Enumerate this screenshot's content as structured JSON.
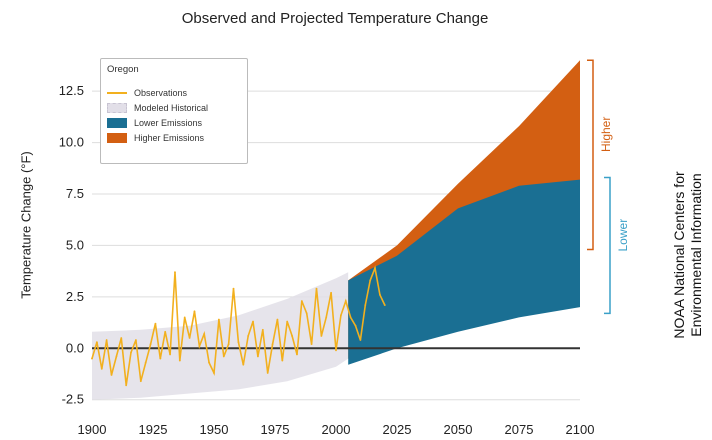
{
  "chart_data": {
    "type": "area",
    "title": "Observed and Projected Temperature Change",
    "ylabel": "Temperature Change (°F)",
    "xlabel": "",
    "xlim": [
      1900,
      2100
    ],
    "ylim": [
      -3.0,
      14.5
    ],
    "x_ticks": [
      1900,
      1925,
      1950,
      1975,
      2000,
      2025,
      2050,
      2075,
      2100
    ],
    "y_ticks": [
      -2.5,
      0.0,
      2.5,
      5.0,
      7.5,
      10.0,
      12.5
    ],
    "grid": "horizontal",
    "legend": {
      "title": "Oregon",
      "position": "top-left",
      "entries": [
        {
          "label": "Observations",
          "kind": "line",
          "color": "#f2b01e"
        },
        {
          "label": "Modeled Historical",
          "kind": "area",
          "color": "#e2dfe8"
        },
        {
          "label": "Lower Emissions",
          "kind": "area",
          "color": "#1a6f93"
        },
        {
          "label": "Higher Emissions",
          "kind": "area",
          "color": "#d35f12"
        }
      ]
    },
    "colors": {
      "observations": "#f2b01e",
      "modeled": "#e2dfe8",
      "lower": "#1a6f93",
      "higher": "#d35f12",
      "zero_line": "#333333"
    },
    "series": [
      {
        "name": "Modeled Historical",
        "x": [
          1900,
          1920,
          1940,
          1960,
          1980,
          2000,
          2005
        ],
        "lower": [
          -2.5,
          -2.4,
          -2.2,
          -2.0,
          -1.6,
          -0.9,
          -0.5
        ],
        "upper": [
          0.8,
          0.9,
          1.1,
          1.6,
          2.4,
          3.4,
          3.7
        ]
      },
      {
        "name": "Lower Emissions",
        "x": [
          2005,
          2025,
          2050,
          2075,
          2100
        ],
        "lower": [
          -0.8,
          0.0,
          0.8,
          1.5,
          2.0
        ],
        "upper": [
          3.3,
          4.5,
          6.8,
          7.9,
          8.2
        ]
      },
      {
        "name": "Higher Emissions",
        "x": [
          2005,
          2025,
          2050,
          2075,
          2100
        ],
        "lower": [
          -0.5,
          0.0,
          0.9,
          1.8,
          2.5
        ],
        "upper": [
          3.3,
          5.0,
          8.0,
          10.8,
          14.0
        ]
      },
      {
        "name": "Observations",
        "x": [
          1900,
          1902,
          1904,
          1906,
          1908,
          1910,
          1912,
          1914,
          1916,
          1918,
          1920,
          1922,
          1924,
          1926,
          1928,
          1930,
          1932,
          1934,
          1936,
          1938,
          1940,
          1942,
          1944,
          1946,
          1948,
          1950,
          1952,
          1954,
          1956,
          1958,
          1960,
          1962,
          1964,
          1966,
          1968,
          1970,
          1972,
          1974,
          1976,
          1978,
          1980,
          1982,
          1984,
          1986,
          1988,
          1990,
          1992,
          1994,
          1996,
          1998,
          2000,
          2002,
          2004,
          2006,
          2008,
          2010,
          2012,
          2014,
          2016,
          2018,
          2020
        ],
        "y": [
          -0.5,
          0.3,
          -1.0,
          0.4,
          -1.3,
          -0.4,
          0.5,
          -1.8,
          -0.2,
          0.4,
          -1.6,
          -0.7,
          0.2,
          1.2,
          -0.5,
          0.8,
          -0.3,
          3.7,
          -0.6,
          1.5,
          0.5,
          1.8,
          0.1,
          0.7,
          -0.7,
          -1.2,
          1.4,
          -0.4,
          0.2,
          2.9,
          0.3,
          -0.8,
          0.6,
          1.3,
          -0.4,
          0.9,
          -1.2,
          0.2,
          1.4,
          -0.6,
          1.3,
          0.6,
          -0.3,
          2.3,
          1.7,
          0.2,
          2.9,
          0.6,
          1.5,
          2.7,
          -0.1,
          1.6,
          2.3,
          1.5,
          1.1,
          0.4,
          2.1,
          3.3,
          3.9,
          2.6,
          2.1
        ]
      }
    ],
    "right_bracket_labels": [
      "Higher",
      "Lower"
    ]
  },
  "credit": {
    "line1": "NOAA National Centers for",
    "line2": "Environmental Information"
  }
}
